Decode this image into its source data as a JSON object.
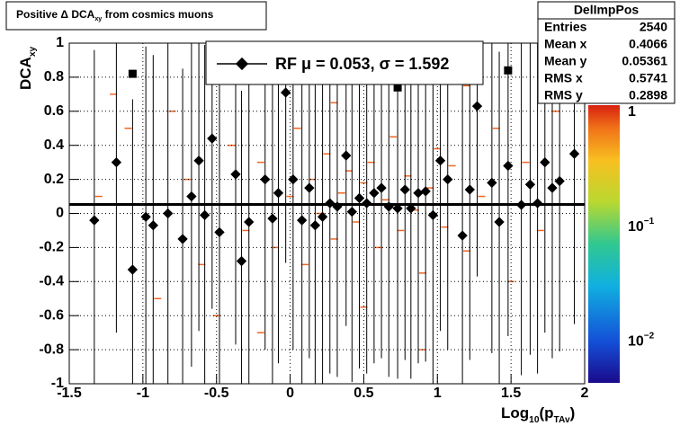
{
  "chart_data": {
    "type": "profile",
    "title_parts": [
      {
        "text": "Positive Δ DCA"
      },
      {
        "text": "xy",
        "sub": true
      },
      {
        "text": " from cosmics muons"
      }
    ],
    "xlabel_parts": [
      {
        "text": "Log"
      },
      {
        "text": "10",
        "sub": true
      },
      {
        "text": "(p"
      },
      {
        "text": "TAv",
        "sub": true
      },
      {
        "text": ")"
      }
    ],
    "ylabel_parts": [
      {
        "text": "DCA"
      },
      {
        "text": "xy",
        "sub": true
      }
    ],
    "xlim": [
      -1.5,
      2
    ],
    "ylim": [
      -1,
      1
    ],
    "xticks": [
      -1.5,
      -1,
      -0.5,
      0,
      0.5,
      1,
      1.5,
      2
    ],
    "yticks": [
      -1,
      -0.8,
      -0.6,
      -0.4,
      -0.2,
      0,
      0.2,
      0.4,
      0.6,
      0.8,
      1
    ],
    "grid": true,
    "x": [
      -1.33,
      -1.18,
      -1.07,
      -0.98,
      -0.93,
      -0.83,
      -0.73,
      -0.67,
      -0.62,
      -0.58,
      -0.53,
      -0.48,
      -0.37,
      -0.33,
      -0.28,
      -0.17,
      -0.12,
      -0.08,
      -0.03,
      0.02,
      0.08,
      0.13,
      0.17,
      0.22,
      0.27,
      0.32,
      0.38,
      0.42,
      0.47,
      0.52,
      0.57,
      0.62,
      0.67,
      0.73,
      0.78,
      0.82,
      0.87,
      0.92,
      0.97,
      1.02,
      1.07,
      1.17,
      1.22,
      1.27,
      1.37,
      1.42,
      1.48,
      1.57,
      1.63,
      1.68,
      1.73,
      1.78,
      1.83,
      1.93
    ],
    "values": [
      -0.04,
      0.3,
      -0.33,
      -0.02,
      -0.07,
      0.0,
      -0.15,
      0.1,
      0.31,
      -0.01,
      0.44,
      -0.11,
      0.23,
      -0.28,
      -0.05,
      0.2,
      -0.03,
      0.12,
      0.71,
      0.2,
      -0.04,
      0.15,
      -0.07,
      -0.02,
      0.06,
      0.04,
      0.34,
      0.01,
      0.09,
      0.06,
      0.12,
      0.15,
      0.04,
      0.03,
      0.14,
      0.03,
      0.12,
      0.13,
      -0.01,
      0.31,
      0.2,
      -0.13,
      0.14,
      0.63,
      0.18,
      -0.05,
      0.28,
      0.05,
      0.17,
      0.06,
      0.3,
      0.15,
      0.19,
      0.35
    ],
    "errors": [
      1,
      1,
      1,
      1,
      1,
      1,
      1,
      1,
      1,
      1,
      1,
      1,
      1,
      1,
      1,
      1,
      1,
      1,
      1,
      1,
      1,
      1,
      1,
      1,
      1,
      1,
      1,
      1,
      1,
      1,
      1,
      1,
      1,
      1,
      1,
      1,
      1,
      1,
      1,
      1,
      1,
      1,
      1,
      1,
      1,
      1,
      1,
      1,
      1,
      1,
      1,
      1,
      1,
      1
    ],
    "color": "#000000",
    "square_x": [
      -1.07,
      0.73,
      1.48
    ],
    "square_y": [
      0.82,
      0.74,
      0.84
    ],
    "fit_mean": 0.053,
    "legend_text": "RF μ =  0.053, σ =   1.592",
    "cells_color": "#f26522",
    "cells_x": [
      -1.2,
      -1.1,
      -1.3,
      -0.9,
      -0.8,
      -0.7,
      -0.6,
      -0.5,
      -0.4,
      -0.3,
      -0.2,
      -0.1,
      0,
      0.05,
      0.1,
      0.15,
      0.2,
      0.25,
      0.3,
      0.35,
      0.4,
      0.45,
      0.5,
      0.55,
      0.6,
      0.65,
      0.7,
      0.75,
      0.8,
      0.85,
      0.9,
      0.95,
      1.0,
      1.05,
      1.1,
      1.2,
      1.3,
      1.4,
      1.5,
      1.6,
      1.7,
      1.8,
      0.3,
      0.5,
      0.1,
      -0.2,
      0.6,
      0.9,
      1.2,
      -0.5
    ],
    "cells_y": [
      0.7,
      0.5,
      0.1,
      -0.5,
      0.6,
      0.2,
      -0.3,
      0.05,
      0.4,
      -0.1,
      0.3,
      -0.2,
      0.1,
      0.5,
      -0.3,
      0.2,
      0,
      0.35,
      -0.15,
      0.12,
      0.25,
      -0.05,
      0.18,
      0.3,
      -0.2,
      0.08,
      0.45,
      -0.1,
      0.22,
      0.02,
      -0.35,
      0.15,
      0.38,
      -0.08,
      0.28,
      -0.22,
      0.1,
      0.5,
      -0.4,
      0.3,
      -0.1,
      0.6,
      0.65,
      -0.55,
      0.8,
      -0.7,
      0.9,
      -0.8,
      0.75,
      -0.6
    ],
    "zlim": [
      0.0044,
      1.16
    ],
    "zticks": [
      {
        "value": 1,
        "label": "1"
      },
      {
        "value": 0.1,
        "label": "10",
        "exponent": "−1"
      },
      {
        "value": 0.01,
        "label": "10",
        "exponent": "−2"
      }
    ],
    "stats": {
      "name": "DelImpPos",
      "rows": [
        [
          "Entries",
          "2540"
        ],
        [
          "Mean x",
          "0.4066"
        ],
        [
          "Mean y",
          "0.05361"
        ],
        [
          "RMS x",
          "0.5741"
        ],
        [
          "RMS y",
          "0.2898"
        ]
      ]
    }
  }
}
